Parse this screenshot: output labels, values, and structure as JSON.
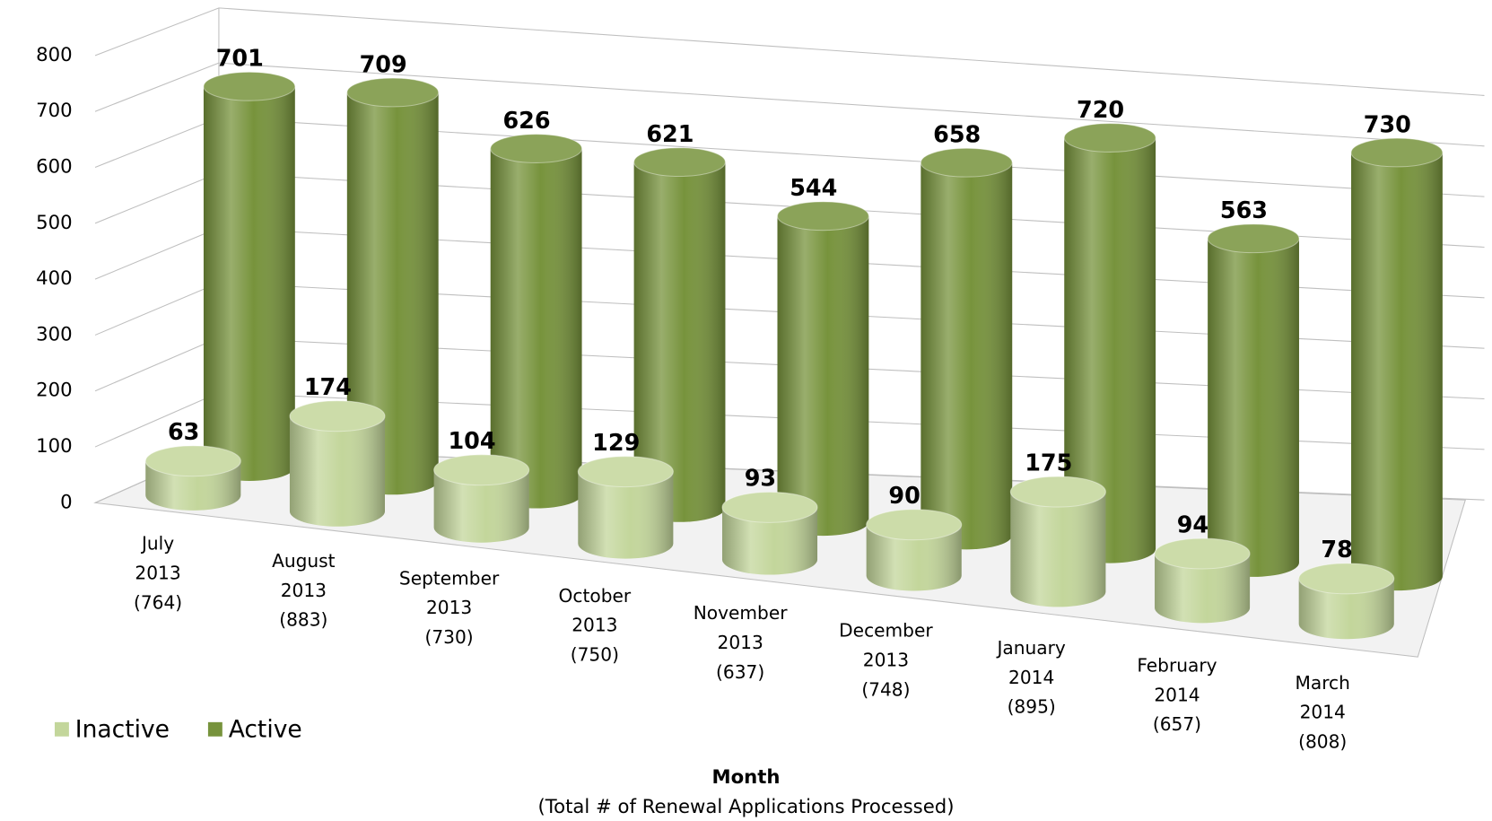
{
  "chart_data": {
    "type": "bar3d",
    "x_label": "Month",
    "x_sublabel": "(Total # of Renewal Applications Processed)",
    "categories": [
      [
        "July",
        "2013",
        "(764)"
      ],
      [
        "August",
        "2013",
        "(883)"
      ],
      [
        "September",
        "2013",
        "(730)"
      ],
      [
        "October",
        "2013",
        "(750)"
      ],
      [
        "November",
        "2013",
        "(637)"
      ],
      [
        "December",
        "2013",
        "(748)"
      ],
      [
        "January",
        "2014",
        "(895)"
      ],
      [
        "February",
        "2014",
        "(657)"
      ],
      [
        "March",
        "2014",
        "(808)"
      ]
    ],
    "series": [
      {
        "name": "Inactive",
        "color": "#c3d69b",
        "values": [
          63,
          174,
          104,
          129,
          93,
          90,
          175,
          94,
          78
        ]
      },
      {
        "name": "Active",
        "color": "#77933c",
        "values": [
          701,
          709,
          626,
          621,
          544,
          658,
          720,
          563,
          730
        ]
      }
    ],
    "ylim": [
      0,
      800
    ],
    "yticks": [
      0,
      100,
      200,
      300,
      400,
      500,
      600,
      700,
      800
    ],
    "grid": true,
    "legend": "bottom-left"
  }
}
